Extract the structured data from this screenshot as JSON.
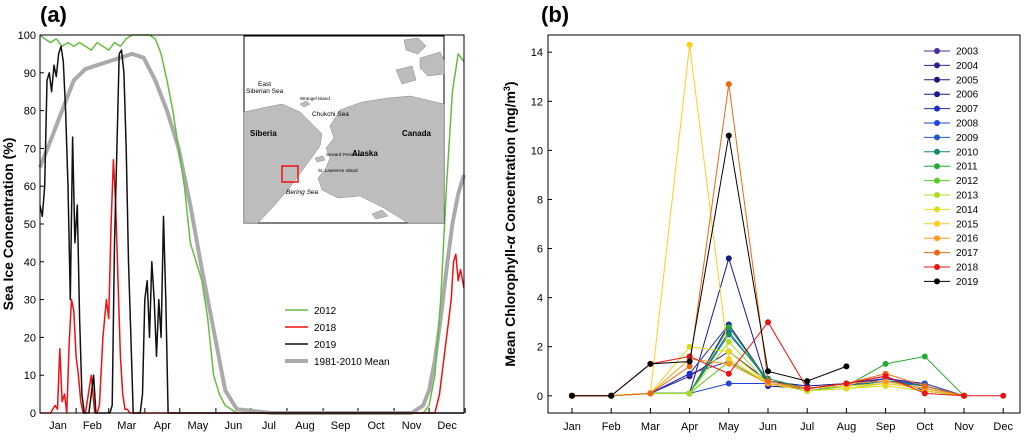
{
  "chart_data": [
    {
      "type": "line",
      "panel_label": "(a)",
      "title": "",
      "xlabel": "",
      "ylabel": "Sea Ice Concentration (%)",
      "ylim": [
        0,
        100
      ],
      "yticks": [
        0,
        10,
        20,
        30,
        40,
        50,
        60,
        70,
        80,
        90,
        100
      ],
      "categories": [
        "Jan",
        "Feb",
        "Mar",
        "Apr",
        "May",
        "Jun",
        "Jul",
        "Aug",
        "Sep",
        "Oct",
        "Nov",
        "Dec"
      ],
      "x_unit": "day of year",
      "xlim": [
        1,
        365
      ],
      "grid": false,
      "legend_position": "middle-right",
      "series": [
        {
          "name": "2012",
          "color": "#66bb44",
          "x": [
            1,
            5,
            10,
            15,
            20,
            25,
            30,
            35,
            40,
            45,
            50,
            55,
            60,
            65,
            70,
            75,
            80,
            85,
            90,
            95,
            100,
            105,
            110,
            115,
            120,
            125,
            130,
            135,
            140,
            145,
            150,
            155,
            160,
            165,
            170,
            200,
            250,
            300,
            330,
            335,
            340,
            345,
            350,
            355,
            360,
            365
          ],
          "y": [
            100,
            99,
            98,
            99,
            97,
            98,
            97,
            98,
            97,
            96,
            98,
            97,
            96,
            98,
            97,
            99,
            100,
            100,
            100,
            100,
            99,
            95,
            88,
            80,
            70,
            60,
            45,
            40,
            35,
            25,
            10,
            5,
            2,
            1,
            0,
            0,
            0,
            0,
            0,
            2,
            10,
            30,
            60,
            85,
            95,
            93
          ]
        },
        {
          "name": "2018",
          "color": "#ee1111",
          "x": [
            1,
            10,
            14,
            16,
            18,
            20,
            22,
            24,
            26,
            28,
            30,
            32,
            34,
            36,
            38,
            40,
            45,
            48,
            50,
            52,
            55,
            58,
            60,
            62,
            64,
            66,
            68,
            70,
            72,
            74,
            76,
            78,
            80,
            82,
            100,
            150,
            200,
            250,
            300,
            340,
            344,
            348,
            352,
            354,
            356,
            358,
            360,
            362,
            365
          ],
          "y": [
            0,
            0,
            2,
            1,
            17,
            3,
            5,
            0,
            18,
            30,
            27,
            15,
            10,
            3,
            0,
            0,
            10,
            0,
            0,
            2,
            20,
            30,
            25,
            50,
            67,
            55,
            35,
            15,
            5,
            1,
            1,
            0,
            0,
            0,
            0,
            0,
            0,
            0,
            0,
            0,
            5,
            15,
            25,
            30,
            40,
            42,
            35,
            38,
            33
          ]
        },
        {
          "name": "2019",
          "color": "#111111",
          "x": [
            1,
            3,
            5,
            7,
            9,
            11,
            13,
            15,
            17,
            19,
            21,
            23,
            25,
            27,
            29,
            31,
            33,
            35,
            37,
            39,
            41,
            43,
            45,
            47,
            49,
            51,
            53,
            55,
            57,
            59,
            61,
            63,
            65,
            67,
            69,
            71,
            73,
            75,
            77,
            79,
            81,
            83,
            85,
            87,
            89,
            91,
            93,
            95,
            97,
            99,
            101,
            103,
            105,
            107,
            109,
            111,
            120,
            200,
            300,
            365
          ],
          "y": [
            55,
            52,
            60,
            88,
            90,
            85,
            92,
            89,
            95,
            97,
            93,
            80,
            60,
            30,
            73,
            45,
            55,
            25,
            5,
            0,
            0,
            0,
            5,
            10,
            0,
            0,
            0,
            0,
            0,
            0,
            0,
            2,
            45,
            70,
            95,
            96,
            90,
            70,
            40,
            20,
            0,
            0,
            0,
            0,
            5,
            30,
            35,
            20,
            40,
            30,
            15,
            30,
            20,
            52,
            30,
            0,
            0,
            0,
            0,
            0
          ]
        },
        {
          "name": "1981-2010 Mean",
          "color": "#aaaaaa",
          "x": [
            1,
            10,
            20,
            30,
            40,
            50,
            60,
            70,
            80,
            90,
            100,
            110,
            120,
            130,
            140,
            150,
            160,
            170,
            200,
            250,
            300,
            320,
            330,
            335,
            340,
            345,
            350,
            355,
            360,
            365
          ],
          "y": [
            65,
            72,
            80,
            88,
            91,
            92,
            93,
            94,
            95,
            94,
            88,
            80,
            70,
            55,
            38,
            22,
            6,
            1,
            0,
            0,
            0,
            0,
            2,
            6,
            14,
            25,
            38,
            50,
            58,
            63
          ]
        }
      ]
    },
    {
      "type": "line",
      "panel_label": "(b)",
      "title": "",
      "xlabel": "",
      "ylabel": "Mean Chlorophyll-",
      "ylabel_italic": "α",
      "ylabel_tail": " Concentration (mg/m",
      "ylabel_sup": "3",
      "ylabel_end": ")",
      "ylim": [
        -0.7,
        14.7
      ],
      "yticks": [
        0,
        2,
        4,
        6,
        8,
        10,
        12,
        14
      ],
      "categories": [
        "Jan",
        "Feb",
        "Mar",
        "Apr",
        "May",
        "Jun",
        "Jul",
        "Aug",
        "Sep",
        "Oct",
        "Nov",
        "Dec"
      ],
      "grid": false,
      "legend_position": "top-right",
      "series": [
        {
          "name": "2003",
          "color": "#4a2c9c",
          "x": [
            1,
            2,
            3,
            4,
            5,
            6,
            7,
            8,
            9,
            10,
            11
          ],
          "y": [
            0,
            0,
            0.1,
            0.9,
            1.4,
            0.5,
            0.3,
            0.4,
            0.6,
            0.3,
            0
          ]
        },
        {
          "name": "2004",
          "color": "#2e1f8e",
          "x": [
            1,
            2,
            3,
            4,
            5,
            6,
            7,
            8,
            9,
            10,
            11
          ],
          "y": [
            0,
            0,
            0.1,
            0.8,
            1.8,
            0.6,
            0.3,
            0.5,
            0.6,
            0.4,
            0
          ]
        },
        {
          "name": "2005",
          "color": "#221580",
          "x": [
            1,
            2,
            3,
            4,
            5,
            6,
            7,
            8,
            9,
            10,
            11
          ],
          "y": [
            0,
            0,
            0.1,
            0.1,
            2.9,
            0.6,
            0.4,
            0.5,
            0.7,
            0.5,
            0
          ]
        },
        {
          "name": "2006",
          "color": "#1a1890",
          "x": [
            1,
            2,
            3,
            4,
            5,
            6,
            7,
            8,
            9,
            10,
            11
          ],
          "y": [
            0,
            0,
            0.1,
            0.1,
            5.6,
            0.4,
            0.3,
            0.5,
            0.8,
            0.2,
            0
          ]
        },
        {
          "name": "2007",
          "color": "#1f2fc0",
          "x": [
            1,
            2,
            3,
            4,
            5,
            6,
            7,
            8,
            9,
            10,
            11
          ],
          "y": [
            0,
            0,
            0.1,
            0.9,
            2.9,
            0.5,
            0.3,
            0.4,
            0.7,
            0.4,
            0
          ]
        },
        {
          "name": "2008",
          "color": "#2244dd",
          "x": [
            1,
            2,
            3,
            4,
            5,
            6,
            7,
            8,
            9,
            10,
            11
          ],
          "y": [
            0,
            0,
            0.1,
            0.1,
            0.5,
            0.5,
            0.2,
            0.4,
            0.6,
            0.4,
            0
          ]
        },
        {
          "name": "2009",
          "color": "#2255cc",
          "x": [
            1,
            2,
            3,
            4,
            5,
            6,
            7,
            8,
            9,
            10,
            11
          ],
          "y": [
            0,
            0,
            0.1,
            0.1,
            2.6,
            0.6,
            0.3,
            0.5,
            0.6,
            0.5,
            0
          ]
        },
        {
          "name": "2010",
          "color": "#138a6c",
          "x": [
            1,
            2,
            3,
            4,
            5,
            6,
            7,
            8,
            9,
            10,
            11
          ],
          "y": [
            0,
            0,
            0.1,
            0.1,
            2.5,
            0.7,
            0.3,
            0.4,
            0.6,
            0.4,
            0
          ]
        },
        {
          "name": "2011",
          "color": "#22aa33",
          "x": [
            1,
            2,
            3,
            4,
            5,
            6,
            7,
            8,
            9,
            10,
            11
          ],
          "y": [
            0,
            0,
            0.1,
            0.1,
            2.8,
            0.6,
            0.3,
            0.4,
            1.3,
            1.6,
            0
          ]
        },
        {
          "name": "2012",
          "color": "#55cc22",
          "x": [
            1,
            2,
            3,
            4,
            5,
            6,
            7,
            8,
            9,
            10,
            11
          ],
          "y": [
            0,
            0,
            0.1,
            0.1,
            1.4,
            0.5,
            0.2,
            0.4,
            0.5,
            0.3,
            0
          ]
        },
        {
          "name": "2013",
          "color": "#aadd22",
          "x": [
            1,
            2,
            3,
            4,
            5,
            6,
            7,
            8,
            9,
            10,
            11
          ],
          "y": [
            0,
            0,
            0.1,
            0.1,
            2.2,
            0.5,
            0.2,
            0.3,
            0.5,
            0.3,
            0
          ]
        },
        {
          "name": "2014",
          "color": "#dddd11",
          "x": [
            1,
            2,
            3,
            4,
            5,
            6,
            7,
            8,
            9,
            10,
            11
          ],
          "y": [
            0,
            0,
            0.1,
            2.0,
            1.8,
            0.5,
            0.2,
            0.3,
            0.4,
            0.2,
            0
          ]
        },
        {
          "name": "2015",
          "color": "#ffcc22",
          "x": [
            1,
            2,
            3,
            4,
            5,
            6,
            7,
            8,
            9,
            10,
            11
          ],
          "y": [
            0,
            0,
            0.1,
            14.3,
            1.5,
            0.5,
            0.3,
            0.4,
            0.5,
            0.3,
            0
          ]
        },
        {
          "name": "2016",
          "color": "#ff9922",
          "x": [
            1,
            2,
            3,
            4,
            5,
            6,
            7,
            8,
            9,
            10,
            11
          ],
          "y": [
            0,
            0,
            0.1,
            1.5,
            1.3,
            0.5,
            0.3,
            0.5,
            0.6,
            0.3,
            0
          ]
        },
        {
          "name": "2017",
          "color": "#ee6611",
          "x": [
            1,
            2,
            3,
            4,
            5,
            6,
            7,
            8,
            9,
            10,
            11
          ],
          "y": [
            0,
            0,
            0.1,
            1.2,
            12.7,
            0.6,
            0.3,
            0.5,
            0.9,
            0.4,
            0
          ]
        },
        {
          "name": "2018",
          "color": "#ee1111",
          "x": [
            1,
            2,
            3,
            4,
            5,
            6,
            7,
            8,
            9,
            10,
            11,
            12
          ],
          "y": [
            0,
            0,
            1.3,
            1.6,
            0.9,
            3.0,
            0.3,
            0.5,
            0.8,
            0.1,
            0,
            0
          ]
        },
        {
          "name": "2019",
          "color": "#000000",
          "x": [
            1,
            2,
            3,
            4,
            5,
            6,
            7,
            8
          ],
          "y": [
            0,
            0,
            1.3,
            1.4,
            10.6,
            1.0,
            0.6,
            1.2
          ]
        }
      ]
    }
  ],
  "map_inset": {
    "labels": {
      "east_siberian_sea_1": "East",
      "east_siberian_sea_2": "Siberian Sea",
      "wrangel_island": "Wrangel Island",
      "chukchi_sea": "Chukchi Sea",
      "siberia": "Siberia",
      "alaska": "Alaska",
      "canada": "Canada",
      "bering_sea": "Bering Sea",
      "seward_peninsula": "Seward Peninsula",
      "st_lawrence_island": "St. Lawrence Island"
    },
    "colors": {
      "land": "#bdbdbd",
      "water": "#ffffff",
      "study_box": "#ee1111"
    }
  }
}
